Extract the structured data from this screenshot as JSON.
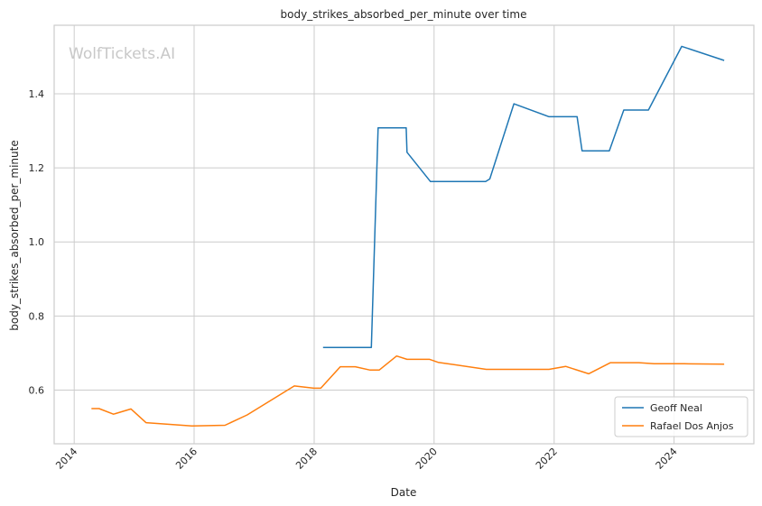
{
  "chart_data": {
    "type": "line",
    "title": "body_strikes_absorbed_per_minute over time",
    "xlabel": "Date",
    "ylabel": "body_strikes_absorbed_per_minute",
    "watermark": "WolfTickets.AI",
    "xlim": [
      "2013-09-01",
      "2025-05-01"
    ],
    "ylim": [
      0.455,
      1.585
    ],
    "x_ticks": [
      "2014",
      "2016",
      "2018",
      "2020",
      "2022",
      "2024"
    ],
    "y_ticks": [
      "0.6",
      "0.8",
      "1.0",
      "1.2",
      "1.4"
    ],
    "y_tick_values": [
      0.6,
      0.8,
      1.0,
      1.2,
      1.4
    ],
    "grid": true,
    "legend_position": "bottom-right",
    "series": [
      {
        "name": "Geoff Neal",
        "color": "#1f77b4",
        "points": [
          [
            "2018-02-24",
            0.715
          ],
          [
            "2018-12-15",
            0.715
          ],
          [
            "2019-01-25",
            1.308
          ],
          [
            "2019-07-15",
            1.308
          ],
          [
            "2019-07-20",
            1.242
          ],
          [
            "2019-12-10",
            1.163
          ],
          [
            "2020-11-10",
            1.163
          ],
          [
            "2020-12-05",
            1.17
          ],
          [
            "2021-05-01",
            1.373
          ],
          [
            "2021-12-01",
            1.338
          ],
          [
            "2022-05-21",
            1.338
          ],
          [
            "2022-06-20",
            1.246
          ],
          [
            "2022-12-03",
            1.246
          ],
          [
            "2023-03-01",
            1.356
          ],
          [
            "2023-07-29",
            1.356
          ],
          [
            "2024-02-17",
            1.528
          ],
          [
            "2024-11-01",
            1.49
          ]
        ]
      },
      {
        "name": "Rafael Dos Anjos",
        "color": "#ff7f0e",
        "points": [
          [
            "2014-04-16",
            0.55
          ],
          [
            "2014-06-01",
            0.55
          ],
          [
            "2014-08-28",
            0.535
          ],
          [
            "2014-12-13",
            0.549
          ],
          [
            "2015-03-14",
            0.512
          ],
          [
            "2015-12-19",
            0.503
          ],
          [
            "2016-07-07",
            0.505
          ],
          [
            "2016-11-19",
            0.533
          ],
          [
            "2017-09-02",
            0.611
          ],
          [
            "2017-12-30",
            0.605
          ],
          [
            "2018-02-10",
            0.605
          ],
          [
            "2018-06-09",
            0.663
          ],
          [
            "2018-09-08",
            0.663
          ],
          [
            "2018-12-08",
            0.654
          ],
          [
            "2019-02-01",
            0.654
          ],
          [
            "2019-05-18",
            0.692
          ],
          [
            "2019-07-20",
            0.683
          ],
          [
            "2019-12-05",
            0.683
          ],
          [
            "2020-01-25",
            0.675
          ],
          [
            "2020-11-14",
            0.656
          ],
          [
            "2021-12-01",
            0.656
          ],
          [
            "2022-03-12",
            0.664
          ],
          [
            "2022-07-30",
            0.644
          ],
          [
            "2022-12-10",
            0.674
          ],
          [
            "2023-06-01",
            0.674
          ],
          [
            "2023-09-01",
            0.671
          ],
          [
            "2024-03-01",
            0.671
          ],
          [
            "2024-11-01",
            0.67
          ]
        ]
      }
    ]
  }
}
